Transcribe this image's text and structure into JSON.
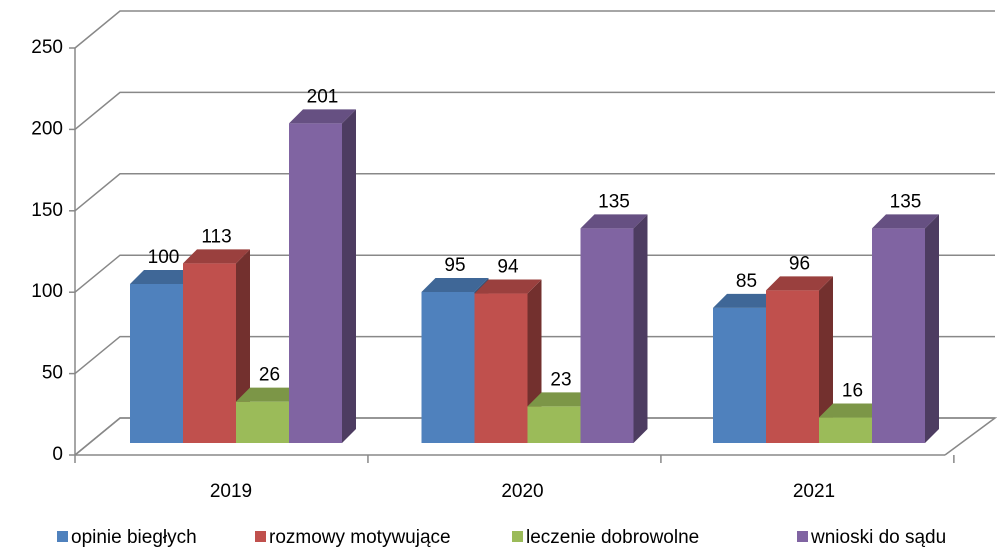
{
  "chart_data": {
    "type": "bar3d",
    "categories": [
      "2019",
      "2020",
      "2021"
    ],
    "series": [
      {
        "name": "opinie biegłych",
        "color": "#4f81bd",
        "values": [
          100,
          95,
          85
        ]
      },
      {
        "name": "rozmowy motywujące",
        "color": "#c0504d",
        "values": [
          113,
          94,
          96
        ]
      },
      {
        "name": "leczenie dobrowolne",
        "color": "#9bbb59",
        "values": [
          26,
          23,
          16
        ]
      },
      {
        "name": "wnioski do sądu",
        "color": "#8064a2",
        "values": [
          201,
          135,
          135
        ]
      }
    ],
    "ylim": [
      0,
      250
    ],
    "yticks": [
      0,
      50,
      100,
      150,
      200,
      250
    ],
    "grid": true,
    "legend": "bottom"
  }
}
